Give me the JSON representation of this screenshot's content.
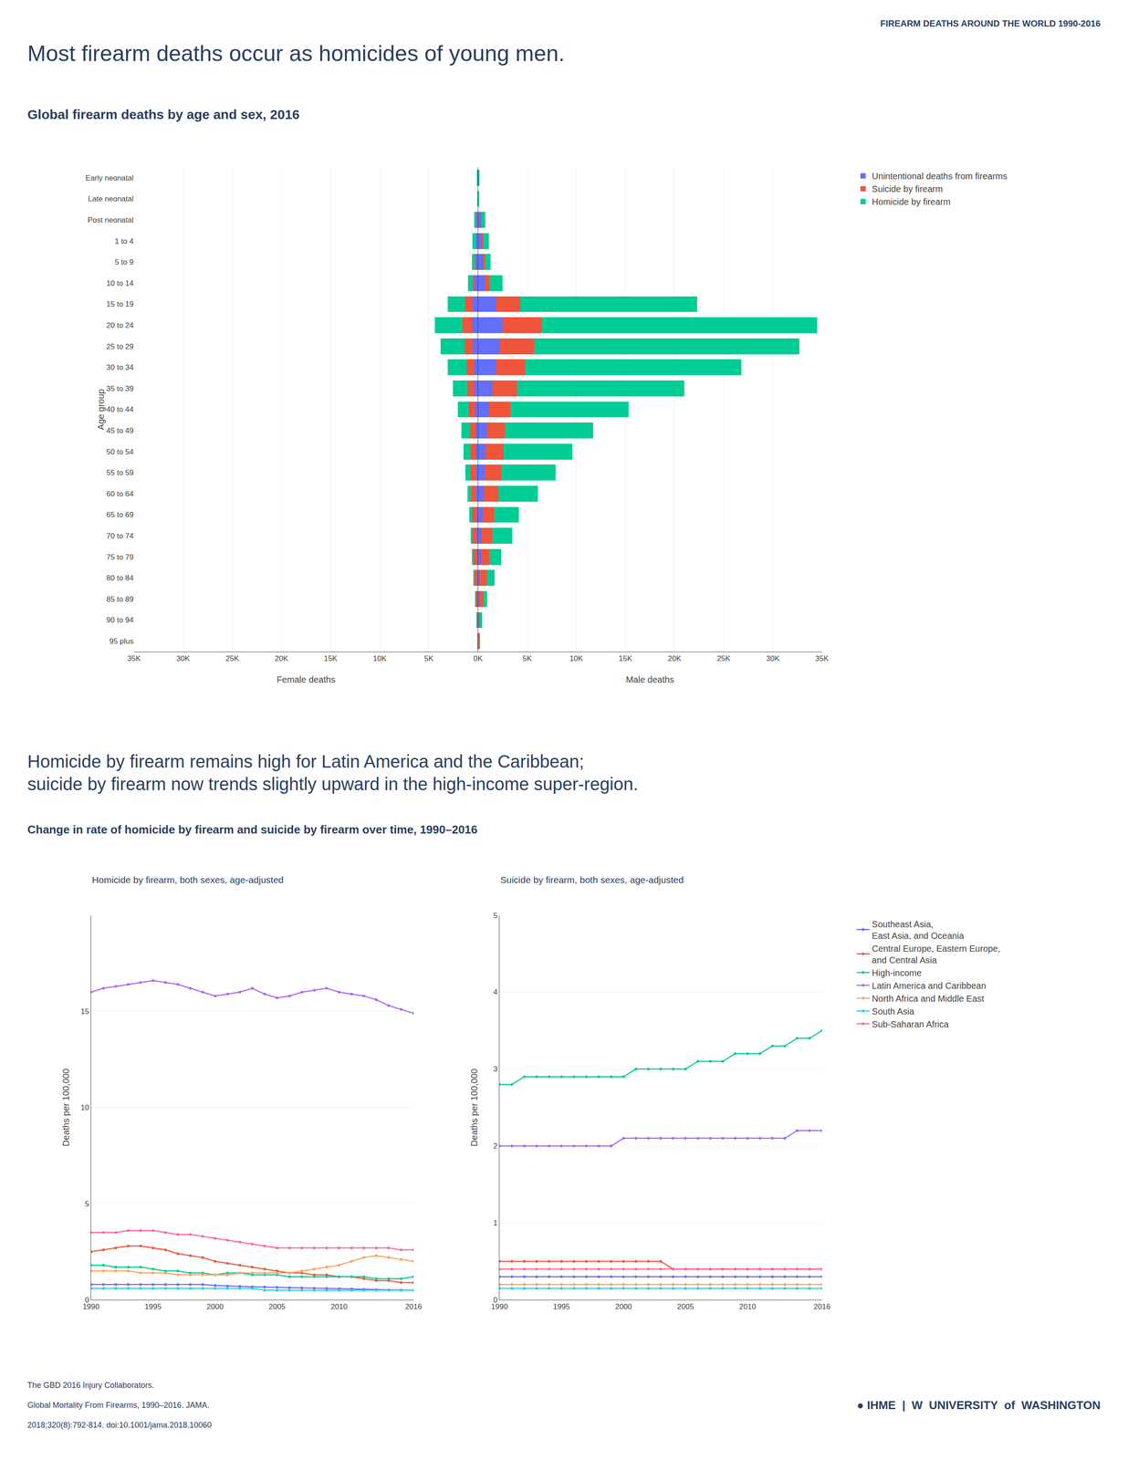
{
  "chart_data": [
    {
      "type": "bar",
      "orientation": "horizontal",
      "stacked": true,
      "title": "Global firearm deaths by age and sex, 2016",
      "annotations": [
        "FIREARM DEATHS AROUND THE WORLD 1990-2016",
        "Most firearm deaths occur as homicides of young men."
      ],
      "ylabel": "Age group",
      "xlabel": "Female deaths",
      "categories": [
        "Early neonatal",
        "Late neonatal",
        "Post neonatal",
        "1 to 4",
        "5 to 9",
        "10 to 14",
        "15 to 19",
        "20 to 24",
        "25 to 29",
        "30 to 34",
        "35 to 39",
        "40 to 44",
        "45 to 49",
        "50 to 54",
        "55 to 59",
        "60 to 64",
        "65 to 69",
        "70 to 74",
        "75 to 79",
        "80 to 84",
        "85 to 89",
        "90 to 94",
        "95 plus"
      ],
      "series": [
        {
          "name": "Unintentional deaths from firearms",
          "values": [
            30,
            20,
            120,
            170,
            220,
            320,
            500,
            600,
            500,
            400,
            350,
            300,
            250,
            200,
            180,
            150,
            120,
            100,
            80,
            60,
            40,
            20,
            10
          ]
        },
        {
          "name": "Suicide by firearm",
          "values": [
            5,
            5,
            25,
            50,
            80,
            200,
            800,
            1000,
            900,
            800,
            700,
            650,
            600,
            600,
            600,
            550,
            500,
            450,
            400,
            300,
            200,
            80,
            30
          ]
        },
        {
          "name": "Homicide by firearm",
          "values": [
            50,
            25,
            250,
            350,
            320,
            500,
            1800,
            2800,
            2400,
            1900,
            1500,
            1100,
            850,
            650,
            500,
            380,
            260,
            200,
            150,
            95,
            55,
            28,
            12
          ]
        }
      ],
      "xlim": [
        35000,
        0
      ],
      "xticks": [
        {
          "value": 5000,
          "label": "5K"
        },
        {
          "value": 10000,
          "label": "10K"
        },
        {
          "value": 15000,
          "label": "15K"
        },
        {
          "value": 20000,
          "label": "20K"
        },
        {
          "value": 25000,
          "label": "25K"
        },
        {
          "value": 30000,
          "label": "30K"
        },
        {
          "value": 35000,
          "label": "35K"
        }
      ],
      "grid": true
    },
    {
      "type": "bar",
      "orientation": "horizontal",
      "stacked": true,
      "xlabel": "Male deaths",
      "categories": [
        "Early neonatal",
        "Late neonatal",
        "Post neonatal",
        "1 to 4",
        "5 to 9",
        "10 to 14",
        "15 to 19",
        "20 to 24",
        "25 to 29",
        "30 to 34",
        "35 to 39",
        "40 to 44",
        "45 to 49",
        "50 to 54",
        "55 to 59",
        "60 to 64",
        "65 to 69",
        "70 to 74",
        "75 to 79",
        "80 to 84",
        "85 to 89",
        "90 to 94",
        "95 plus"
      ],
      "series": [
        {
          "name": "Unintentional deaths from firearms",
          "values": [
            50,
            30,
            300,
            400,
            500,
            700,
            1800,
            2500,
            2200,
            1800,
            1500,
            1100,
            900,
            800,
            700,
            600,
            450,
            380,
            280,
            200,
            130,
            70,
            35
          ]
        },
        {
          "name": "Suicide by firearm",
          "values": [
            10,
            10,
            60,
            100,
            200,
            500,
            2500,
            4000,
            3500,
            3000,
            2500,
            2200,
            1800,
            1800,
            1700,
            1500,
            1200,
            1100,
            900,
            700,
            400,
            150,
            60
          ]
        },
        {
          "name": "Homicide by firearm",
          "values": [
            80,
            40,
            400,
            600,
            600,
            1300,
            18000,
            28000,
            27000,
            22000,
            17000,
            12000,
            9000,
            7000,
            5500,
            4000,
            2500,
            2000,
            1200,
            800,
            400,
            200,
            80
          ]
        }
      ],
      "xlim": [
        0,
        35000
      ],
      "xticks": [
        {
          "value": 0,
          "label": "0K"
        },
        {
          "value": 5000,
          "label": "5K"
        },
        {
          "value": 10000,
          "label": "10K"
        },
        {
          "value": 15000,
          "label": "15K"
        },
        {
          "value": 20000,
          "label": "20K"
        },
        {
          "value": 25000,
          "label": "25K"
        },
        {
          "value": 30000,
          "label": "30K"
        },
        {
          "value": 35000,
          "label": "35K"
        }
      ],
      "grid": true,
      "legend": "right",
      "tick_labels": "x"
    },
    {
      "type": "line",
      "title": "Homicide by firearm, both sexes, age-adjusted",
      "annotations": [
        "Homicide by firearm remains high for Latin America and the Caribbean;",
        "suicide by firearm now trends slightly upward in the high-income super-region.",
        "Change in rate of homicide by firearm and suicide by firearm over time, 1990–2016"
      ],
      "ylabel": "Deaths per 100,000",
      "x": [
        1990,
        1991,
        1992,
        1993,
        1994,
        1995,
        1996,
        1997,
        1998,
        1999,
        2000,
        2001,
        2002,
        2003,
        2004,
        2005,
        2006,
        2007,
        2008,
        2009,
        2010,
        2011,
        2012,
        2013,
        2014,
        2015,
        2016
      ],
      "series": [
        {
          "name": "Southeast Asia,\nEast Asia, and Oceania",
          "values": [
            0.8,
            0.8,
            0.8,
            0.8,
            0.8,
            0.8,
            0.8,
            0.8,
            0.8,
            0.8,
            0.75,
            0.72,
            0.7,
            0.68,
            0.67,
            0.65,
            0.63,
            0.62,
            0.6,
            0.6,
            0.58,
            0.57,
            0.55,
            0.53,
            0.52,
            0.51,
            0.5
          ]
        },
        {
          "name": "Central Europe, Eastern Europe,\nand Central Asia",
          "values": [
            2.5,
            2.6,
            2.7,
            2.8,
            2.8,
            2.7,
            2.6,
            2.4,
            2.3,
            2.2,
            2.0,
            1.9,
            1.8,
            1.7,
            1.6,
            1.5,
            1.4,
            1.4,
            1.3,
            1.3,
            1.2,
            1.2,
            1.1,
            1.0,
            1.0,
            0.9,
            0.9
          ]
        },
        {
          "name": "High-income",
          "values": [
            1.8,
            1.8,
            1.7,
            1.7,
            1.7,
            1.6,
            1.5,
            1.5,
            1.4,
            1.4,
            1.3,
            1.4,
            1.4,
            1.3,
            1.3,
            1.3,
            1.2,
            1.2,
            1.2,
            1.2,
            1.2,
            1.2,
            1.2,
            1.1,
            1.1,
            1.1,
            1.2
          ]
        },
        {
          "name": "Latin America and Caribbean",
          "values": [
            16.0,
            16.2,
            16.3,
            16.4,
            16.5,
            16.6,
            16.5,
            16.4,
            16.2,
            16.0,
            15.8,
            15.9,
            16.0,
            16.2,
            15.9,
            15.7,
            15.8,
            16.0,
            16.1,
            16.2,
            16.0,
            15.9,
            15.8,
            15.6,
            15.3,
            15.1,
            14.9
          ]
        },
        {
          "name": "North Africa and Middle East",
          "values": [
            1.5,
            1.5,
            1.5,
            1.5,
            1.4,
            1.4,
            1.4,
            1.3,
            1.3,
            1.3,
            1.3,
            1.3,
            1.4,
            1.4,
            1.4,
            1.4,
            1.4,
            1.5,
            1.6,
            1.7,
            1.8,
            2.0,
            2.2,
            2.3,
            2.2,
            2.1,
            2.0
          ]
        },
        {
          "name": "South Asia",
          "values": [
            0.6,
            0.6,
            0.6,
            0.6,
            0.6,
            0.6,
            0.6,
            0.6,
            0.6,
            0.6,
            0.6,
            0.6,
            0.6,
            0.6,
            0.5,
            0.5,
            0.5,
            0.5,
            0.5,
            0.5,
            0.5,
            0.5,
            0.5,
            0.5,
            0.5,
            0.5,
            0.5
          ]
        },
        {
          "name": "Sub-Saharan Africa",
          "values": [
            3.5,
            3.5,
            3.5,
            3.6,
            3.6,
            3.6,
            3.5,
            3.4,
            3.4,
            3.3,
            3.2,
            3.1,
            3.0,
            2.9,
            2.8,
            2.7,
            2.7,
            2.7,
            2.7,
            2.7,
            2.7,
            2.7,
            2.7,
            2.7,
            2.7,
            2.6,
            2.6
          ]
        }
      ],
      "xlim": [
        1990,
        2016
      ],
      "xticks": [
        1990,
        1995,
        2000,
        2005,
        2010,
        2016
      ],
      "ylim": [
        0,
        20
      ],
      "yticks": [
        0,
        5,
        10,
        15
      ],
      "grid": true,
      "marker": "circle",
      "legend": "right"
    },
    {
      "type": "line",
      "title": "Suicide by firearm, both sexes, age-adjusted",
      "annotations": [
        "The GBD 2016 Injury Collaborators.",
        "Global Mortality From Firearms, 1990–2016. JAMA.",
        "2018;320(8):792-814. doi:10.1001/jama.2018.10060",
        "● IHME",
        "|",
        "W  UNIVERSITY",
        "of",
        "WASHINGTON"
      ],
      "ylabel": "Deaths per 100,000",
      "x": [
        1990,
        1991,
        1992,
        1993,
        1994,
        1995,
        1996,
        1997,
        1998,
        1999,
        2000,
        2001,
        2002,
        2003,
        2004,
        2005,
        2006,
        2007,
        2008,
        2009,
        2010,
        2011,
        2012,
        2013,
        2014,
        2015,
        2016
      ],
      "series": [
        {
          "name": "Southeast Asia,\nEast Asia, and Oceania",
          "values": [
            0.3,
            0.3,
            0.3,
            0.3,
            0.3,
            0.3,
            0.3,
            0.3,
            0.3,
            0.3,
            0.3,
            0.3,
            0.3,
            0.3,
            0.3,
            0.3,
            0.3,
            0.3,
            0.3,
            0.3,
            0.3,
            0.3,
            0.3,
            0.3,
            0.3,
            0.3,
            0.3
          ]
        },
        {
          "name": "Central Europe, Eastern Europe,\nand Central Asia",
          "values": [
            0.5,
            0.5,
            0.5,
            0.5,
            0.5,
            0.5,
            0.5,
            0.5,
            0.5,
            0.5,
            0.5,
            0.5,
            0.5,
            0.5,
            0.4,
            0.4,
            0.4,
            0.4,
            0.4,
            0.4,
            0.4,
            0.4,
            0.4,
            0.4,
            0.4,
            0.4,
            0.4
          ]
        },
        {
          "name": "High-income",
          "values": [
            2.8,
            2.8,
            2.9,
            2.9,
            2.9,
            2.9,
            2.9,
            2.9,
            2.9,
            2.9,
            2.9,
            3.0,
            3.0,
            3.0,
            3.0,
            3.0,
            3.1,
            3.1,
            3.1,
            3.2,
            3.2,
            3.2,
            3.3,
            3.3,
            3.4,
            3.4,
            3.5
          ]
        },
        {
          "name": "Latin America and Caribbean",
          "values": [
            2.0,
            2.0,
            2.0,
            2.0,
            2.0,
            2.0,
            2.0,
            2.0,
            2.0,
            2.0,
            2.1,
            2.1,
            2.1,
            2.1,
            2.1,
            2.1,
            2.1,
            2.1,
            2.1,
            2.1,
            2.1,
            2.1,
            2.1,
            2.1,
            2.2,
            2.2,
            2.2
          ]
        },
        {
          "name": "North Africa and Middle East",
          "values": [
            0.2,
            0.2,
            0.2,
            0.2,
            0.2,
            0.2,
            0.2,
            0.2,
            0.2,
            0.2,
            0.2,
            0.2,
            0.2,
            0.2,
            0.2,
            0.2,
            0.2,
            0.2,
            0.2,
            0.2,
            0.2,
            0.2,
            0.2,
            0.2,
            0.2,
            0.2,
            0.2
          ]
        },
        {
          "name": "South Asia",
          "values": [
            0.15,
            0.15,
            0.15,
            0.15,
            0.15,
            0.15,
            0.15,
            0.15,
            0.15,
            0.15,
            0.15,
            0.15,
            0.15,
            0.15,
            0.15,
            0.15,
            0.15,
            0.15,
            0.15,
            0.15,
            0.15,
            0.15,
            0.15,
            0.15,
            0.15,
            0.15,
            0.15
          ]
        },
        {
          "name": "Sub-Saharan Africa",
          "values": [
            0.4,
            0.4,
            0.4,
            0.4,
            0.4,
            0.4,
            0.4,
            0.4,
            0.4,
            0.4,
            0.4,
            0.4,
            0.4,
            0.4,
            0.4,
            0.4,
            0.4,
            0.4,
            0.4,
            0.4,
            0.4,
            0.4,
            0.4,
            0.4,
            0.4,
            0.4,
            0.4
          ]
        }
      ],
      "xlim": [
        1990,
        2016
      ],
      "xticks": [
        1990,
        1995,
        2000,
        2005,
        2010,
        2016
      ],
      "ylim": [
        0,
        5
      ],
      "yticks": [
        0,
        1,
        2,
        3,
        4,
        5
      ],
      "grid": true,
      "marker": "circle"
    }
  ]
}
